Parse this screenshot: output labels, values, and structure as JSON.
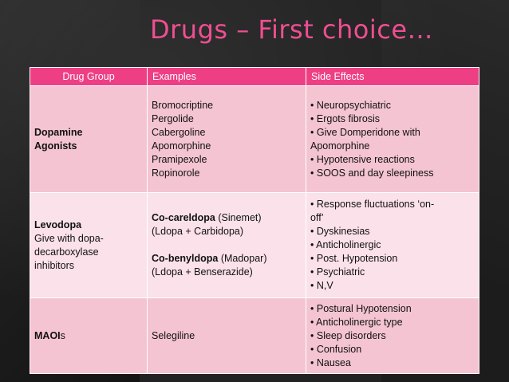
{
  "slide": {
    "title": "Drugs – First choice…",
    "accent_color": "#ee3f84",
    "title_color": "#f04e92"
  },
  "table": {
    "headers": [
      "Drug Group",
      "Examples",
      "Side Effects"
    ],
    "rows": [
      {
        "group_lines": [
          "Dopamine",
          "Agonists"
        ],
        "examples": [
          "Bromocriptine",
          "Pergolide",
          "Cabergoline",
          "Apomorphine",
          "Pramipexole",
          "Ropinorole"
        ],
        "side_effects": [
          "• Neuropsychiatric",
          "• Ergots fibrosis",
          "• Give Domperidone with",
          "Apomorphine",
          "• Hypotensive reactions",
          "• SOOS and day sleepiness"
        ]
      },
      {
        "group_bold": "Levodopa",
        "group_lines": [
          "Give with dopa-",
          "decarboxylase",
          "inhibitors"
        ],
        "example1_bold": "Co-careldopa",
        "example1_rest": " (Sinemet)",
        "example1_sub": "(Ldopa + Carbidopa)",
        "example2_bold": "Co-benyldopa",
        "example2_rest": " (Madopar)",
        "example2_sub": "(Ldopa + Benserazide)",
        "side_effects": [
          "• Response fluctuations ‘on-",
          "off’",
          "• Dyskinesias",
          "• Anticholinergic",
          "• Post. Hypotension",
          "• Psychiatric",
          "• N,V"
        ]
      },
      {
        "group_bold": "MAOI",
        "group_rest": "s",
        "example": "Selegiline",
        "side_effects": [
          "• Postural Hypotension",
          "• Anticholinergic type",
          "• Sleep disorders",
          "• Confusion",
          "• Nausea"
        ]
      }
    ]
  }
}
